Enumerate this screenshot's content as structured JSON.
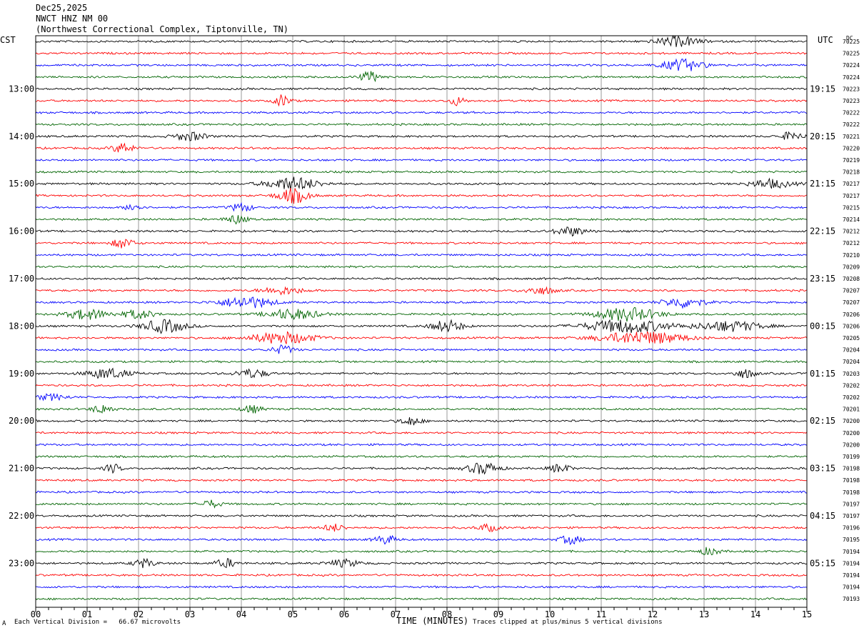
{
  "header": {
    "date": "Dec25,2025",
    "station": "NWCT HNZ NM 00",
    "location": "(Northwest Correctional Complex, Tiptonville, TN)"
  },
  "left_tz": "CST",
  "right_tz": "UTC",
  "dc_label": "DC",
  "footer": {
    "scale": "Each Vertical Division =   66.67 microvolts",
    "xaxis_title": "TIME (MINUTES)",
    "clip_note": "Traces clipped at plus/minus 5 vertical divisions",
    "corner_mark": "A"
  },
  "colors": {
    "black": "#000000",
    "red": "#ff0000",
    "blue": "#0000ff",
    "green": "#006400",
    "grid": "#808080"
  },
  "chart_data": {
    "type": "line",
    "title": "",
    "xlabel": "TIME (MINUTES)",
    "xlim": [
      0,
      15
    ],
    "x_ticks": [
      "00",
      "01",
      "02",
      "03",
      "04",
      "05",
      "06",
      "07",
      "08",
      "09",
      "10",
      "11",
      "12",
      "13",
      "14",
      "15"
    ],
    "rows_per_hour": 4,
    "row_colors": [
      "black",
      "red",
      "blue",
      "green"
    ],
    "left_labels": [
      {
        "row": 4,
        "text": "13:00"
      },
      {
        "row": 8,
        "text": "14:00"
      },
      {
        "row": 12,
        "text": "15:00"
      },
      {
        "row": 16,
        "text": "16:00"
      },
      {
        "row": 20,
        "text": "17:00"
      },
      {
        "row": 24,
        "text": "18:00"
      },
      {
        "row": 28,
        "text": "19:00"
      },
      {
        "row": 32,
        "text": "20:00"
      },
      {
        "row": 36,
        "text": "21:00"
      },
      {
        "row": 40,
        "text": "22:00"
      },
      {
        "row": 44,
        "text": "23:00"
      }
    ],
    "right_labels": [
      {
        "row": 4,
        "text": "19:15"
      },
      {
        "row": 8,
        "text": "20:15"
      },
      {
        "row": 12,
        "text": "21:15"
      },
      {
        "row": 16,
        "text": "22:15"
      },
      {
        "row": 20,
        "text": "23:15"
      },
      {
        "row": 24,
        "text": "00:15"
      },
      {
        "row": 28,
        "text": "01:15"
      },
      {
        "row": 32,
        "text": "02:15"
      },
      {
        "row": 36,
        "text": "03:15"
      },
      {
        "row": 40,
        "text": "04:15"
      },
      {
        "row": 44,
        "text": "05:15"
      }
    ],
    "dc_offsets": [
      "70225",
      "70225",
      "70224",
      "70224",
      "70223",
      "70223",
      "70222",
      "70222",
      "70221",
      "70220",
      "70219",
      "70218",
      "70217",
      "70217",
      "70215",
      "70214",
      "70212",
      "70212",
      "70210",
      "70209",
      "70208",
      "70207",
      "70207",
      "70206",
      "70206",
      "70205",
      "70204",
      "70204",
      "70203",
      "70202",
      "70202",
      "70201",
      "70200",
      "70200",
      "70200",
      "70199",
      "70198",
      "70198",
      "70198",
      "70197",
      "70197",
      "70196",
      "70195",
      "70194",
      "70194",
      "70194",
      "70194",
      "70193"
    ],
    "bursts": [
      {
        "row": 0,
        "t": 12.5,
        "amp": 7,
        "w": 0.4
      },
      {
        "row": 2,
        "t": 12.6,
        "amp": 8,
        "w": 0.4
      },
      {
        "row": 3,
        "t": 6.5,
        "amp": 7,
        "w": 0.2
      },
      {
        "row": 5,
        "t": 4.8,
        "amp": 8,
        "w": 0.15
      },
      {
        "row": 5,
        "t": 8.2,
        "amp": 6,
        "w": 0.15
      },
      {
        "row": 8,
        "t": 3.0,
        "amp": 6,
        "w": 0.3
      },
      {
        "row": 8,
        "t": 14.7,
        "amp": 6,
        "w": 0.2
      },
      {
        "row": 9,
        "t": 1.7,
        "amp": 7,
        "w": 0.2
      },
      {
        "row": 12,
        "t": 5.0,
        "amp": 9,
        "w": 0.5
      },
      {
        "row": 12,
        "t": 14.3,
        "amp": 6,
        "w": 0.4
      },
      {
        "row": 13,
        "t": 5.0,
        "amp": 10,
        "w": 0.3
      },
      {
        "row": 14,
        "t": 1.9,
        "amp": 6,
        "w": 0.15
      },
      {
        "row": 14,
        "t": 4.0,
        "amp": 6,
        "w": 0.2
      },
      {
        "row": 15,
        "t": 3.9,
        "amp": 6,
        "w": 0.2
      },
      {
        "row": 16,
        "t": 10.4,
        "amp": 6,
        "w": 0.3
      },
      {
        "row": 17,
        "t": 1.7,
        "amp": 7,
        "w": 0.2
      },
      {
        "row": 21,
        "t": 4.8,
        "amp": 5,
        "w": 0.4
      },
      {
        "row": 21,
        "t": 9.8,
        "amp": 5,
        "w": 0.3
      },
      {
        "row": 22,
        "t": 4.1,
        "amp": 8,
        "w": 0.5
      },
      {
        "row": 22,
        "t": 12.6,
        "amp": 7,
        "w": 0.4
      },
      {
        "row": 23,
        "t": 1.0,
        "amp": 7,
        "w": 0.4
      },
      {
        "row": 23,
        "t": 2.0,
        "amp": 6,
        "w": 0.3
      },
      {
        "row": 23,
        "t": 5.0,
        "amp": 7,
        "w": 0.5
      },
      {
        "row": 23,
        "t": 11.5,
        "amp": 9,
        "w": 0.6
      },
      {
        "row": 24,
        "t": 2.5,
        "amp": 9,
        "w": 0.4
      },
      {
        "row": 24,
        "t": 8.0,
        "amp": 8,
        "w": 0.3
      },
      {
        "row": 24,
        "t": 11.5,
        "amp": 9,
        "w": 0.8
      },
      {
        "row": 24,
        "t": 13.5,
        "amp": 7,
        "w": 0.6
      },
      {
        "row": 25,
        "t": 4.8,
        "amp": 8,
        "w": 0.6
      },
      {
        "row": 25,
        "t": 11.8,
        "amp": 9,
        "w": 0.8
      },
      {
        "row": 26,
        "t": 4.8,
        "amp": 6,
        "w": 0.2
      },
      {
        "row": 28,
        "t": 1.4,
        "amp": 7,
        "w": 0.4
      },
      {
        "row": 28,
        "t": 4.2,
        "amp": 6,
        "w": 0.3
      },
      {
        "row": 28,
        "t": 13.8,
        "amp": 6,
        "w": 0.2
      },
      {
        "row": 30,
        "t": 0.3,
        "amp": 4,
        "w": 0.3
      },
      {
        "row": 31,
        "t": 1.3,
        "amp": 6,
        "w": 0.2
      },
      {
        "row": 31,
        "t": 4.2,
        "amp": 5,
        "w": 0.2
      },
      {
        "row": 32,
        "t": 7.3,
        "amp": 6,
        "w": 0.2
      },
      {
        "row": 36,
        "t": 1.5,
        "amp": 6,
        "w": 0.15
      },
      {
        "row": 36,
        "t": 8.7,
        "amp": 8,
        "w": 0.3
      },
      {
        "row": 36,
        "t": 10.2,
        "amp": 6,
        "w": 0.2
      },
      {
        "row": 39,
        "t": 3.4,
        "amp": 5,
        "w": 0.2
      },
      {
        "row": 41,
        "t": 5.8,
        "amp": 5,
        "w": 0.2
      },
      {
        "row": 41,
        "t": 8.8,
        "amp": 5,
        "w": 0.2
      },
      {
        "row": 42,
        "t": 6.8,
        "amp": 6,
        "w": 0.2
      },
      {
        "row": 42,
        "t": 10.4,
        "amp": 6,
        "w": 0.2
      },
      {
        "row": 43,
        "t": 13.1,
        "amp": 5,
        "w": 0.2
      },
      {
        "row": 44,
        "t": 2.1,
        "amp": 6,
        "w": 0.2
      },
      {
        "row": 44,
        "t": 3.7,
        "amp": 6,
        "w": 0.2
      },
      {
        "row": 44,
        "t": 6.0,
        "amp": 5,
        "w": 0.3
      }
    ]
  }
}
